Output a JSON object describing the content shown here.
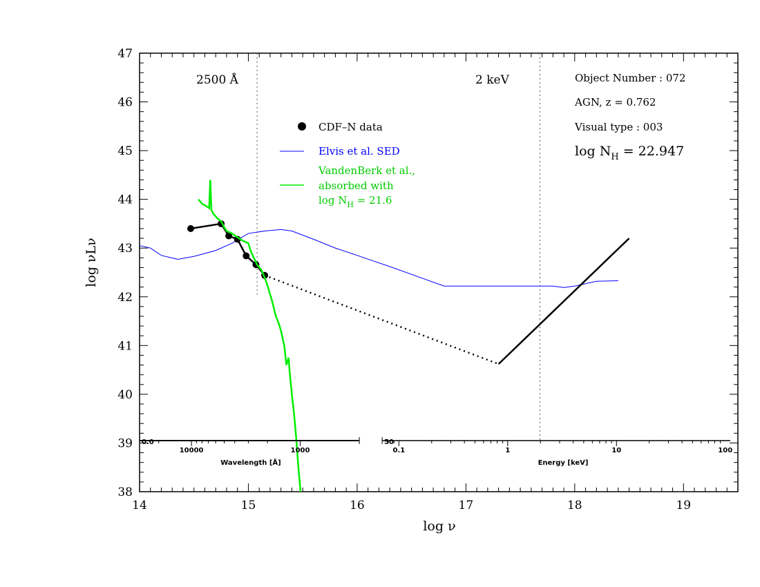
{
  "chart_data": {
    "type": "line",
    "xlabel": "log ν",
    "ylabel": "log νLν",
    "xlim": [
      14,
      19.5
    ],
    "ylim": [
      38,
      47
    ],
    "x_ticks": [
      14,
      15,
      16,
      17,
      18,
      19
    ],
    "y_ticks": [
      38,
      39,
      40,
      41,
      42,
      43,
      44,
      45,
      46,
      47
    ],
    "vlines": [
      {
        "x": 15.08,
        "ymax": 42.0,
        "label": "2500 Å"
      },
      {
        "x": 17.68,
        "ymax": 47.0,
        "label": "2 keV"
      }
    ],
    "info": {
      "object_number": "Object Number : 072",
      "agn_z": "AGN, z = 0.762",
      "visual_type": "Visual type : 003",
      "log_nh_prefix": "log N",
      "log_nh_sub": "H",
      "log_nh_value": " = 22.947"
    },
    "legend": {
      "cdf": "CDF–N data",
      "elvis": "Elvis et al. SED",
      "vdb_line1": "VandenBerk et al.,",
      "vdb_line2": "absorbed with",
      "vdb_line3_prefix": "log N",
      "vdb_line3_sub": "H",
      "vdb_line3_value": " = 21.6"
    },
    "colors": {
      "cdf": "#000000",
      "elvis": "#0000ff",
      "vdb": "#00ee00"
    },
    "series": [
      {
        "name": "CDF–N data",
        "kind": "points",
        "x": [
          14.47,
          14.75,
          14.82,
          14.9,
          14.98,
          15.07,
          15.15
        ],
        "y": [
          43.4,
          43.5,
          43.25,
          43.18,
          42.84,
          42.66,
          42.44
        ]
      },
      {
        "name": "Elvis et al. SED",
        "kind": "line",
        "x": [
          14.0,
          14.1,
          14.2,
          14.35,
          14.5,
          14.7,
          14.85,
          15.0,
          15.15,
          15.3,
          15.4,
          15.6,
          15.8,
          16.0,
          16.3,
          16.6,
          16.8,
          16.9,
          17.2,
          17.5,
          17.8,
          17.9,
          18.0,
          18.2,
          18.4
        ],
        "y": [
          43.05,
          43.0,
          42.85,
          42.77,
          42.83,
          42.95,
          43.1,
          43.3,
          43.35,
          43.38,
          43.35,
          43.18,
          43.0,
          42.85,
          42.62,
          42.38,
          42.22,
          42.22,
          42.22,
          42.22,
          42.22,
          42.19,
          42.22,
          42.32,
          42.33
        ]
      },
      {
        "name": "VandenBerk et al., absorbed with log NH = 21.6",
        "kind": "line",
        "x": [
          14.54,
          14.56,
          14.58,
          14.6,
          14.62,
          14.64,
          14.65,
          14.66,
          14.68,
          14.7,
          14.72,
          14.75,
          14.78,
          14.8,
          14.85,
          14.9,
          14.95,
          15.0,
          15.02,
          15.05,
          15.08,
          15.12,
          15.15,
          15.18,
          15.2,
          15.22,
          15.25,
          15.28,
          15.3,
          15.33,
          15.35,
          15.37,
          15.38,
          15.4,
          15.42,
          15.44,
          15.46,
          15.48
        ],
        "y": [
          44.0,
          43.95,
          43.9,
          43.88,
          43.85,
          43.82,
          44.4,
          43.78,
          43.7,
          43.65,
          43.6,
          43.55,
          43.42,
          43.35,
          43.3,
          43.22,
          43.15,
          43.1,
          42.95,
          42.8,
          42.66,
          42.55,
          42.4,
          42.2,
          42.05,
          41.9,
          41.62,
          41.45,
          41.3,
          41.0,
          40.6,
          40.75,
          40.45,
          40.0,
          39.6,
          39.1,
          38.5,
          38.0
        ]
      },
      {
        "name": "optical-to-X-ray interpolation",
        "kind": "dotted",
        "x": [
          15.15,
          17.3
        ],
        "y": [
          42.44,
          40.62
        ]
      },
      {
        "name": "X-ray power law",
        "kind": "line",
        "x": [
          17.3,
          18.5
        ],
        "y": [
          40.62,
          43.2
        ]
      }
    ],
    "wavelength_axis": {
      "title": "Wavelength [Å]",
      "end_label": "0.0",
      "tick_labels": [
        {
          "text": "10000",
          "log_nu": 14.477
        },
        {
          "text": "1000",
          "log_nu": 15.477
        }
      ]
    },
    "energy_axis": {
      "title": "Energy [keV]",
      "end_label": "50",
      "tick_labels": [
        {
          "text": "0.1",
          "log_nu": 16.384
        },
        {
          "text": "1",
          "log_nu": 17.384
        },
        {
          "text": "10",
          "log_nu": 18.384
        },
        {
          "text": "100",
          "log_nu": 19.384
        }
      ]
    }
  }
}
